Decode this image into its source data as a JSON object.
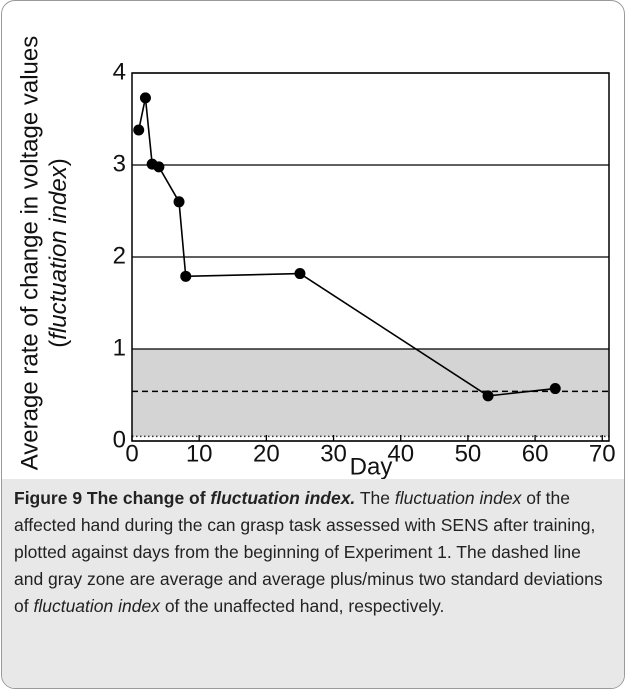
{
  "chart_data": {
    "type": "line",
    "y_label": "Average rate of change in voltage values",
    "y_label_2": [
      "(",
      "fluctuation  index",
      ")"
    ],
    "x_label": "Day",
    "x": [
      1,
      2,
      3,
      4,
      7,
      8,
      25,
      53,
      63
    ],
    "series": [
      {
        "name": "affected hand",
        "color": "#000000",
        "values": [
          3.38,
          3.73,
          3.01,
          2.98,
          2.6,
          1.79,
          1.82,
          0.49,
          0.57
        ]
      }
    ],
    "xlim": [
      0,
      71
    ],
    "xticks": [
      0,
      10,
      20,
      30,
      40,
      50,
      60,
      70
    ],
    "ylim": [
      0,
      4
    ],
    "yticks": [
      0,
      1,
      2,
      3,
      4
    ],
    "grid": true,
    "band": {
      "low": 0.05,
      "high": 1,
      "color": "#d4d4d4"
    },
    "mean_line": 0.54
  },
  "caption": [
    {
      "text": "Figure 9 The change of ",
      "style": "bold"
    },
    {
      "text": "fluctuation index.",
      "style": "bold-italic"
    },
    {
      "text": " The ",
      "style": "normal"
    },
    {
      "text": "fluctuation index",
      "style": "italic"
    },
    {
      "text": " of the affected hand during the can grasp task assessed with SENS after training, plotted against days from the beginning of Experiment 1. The dashed line and gray zone are average and average plus/minus two standard deviations of ",
      "style": "normal"
    },
    {
      "text": "fluctuation index",
      "style": "italic"
    },
    {
      "text": " of the unaffected hand, respectively.",
      "style": "normal"
    }
  ]
}
